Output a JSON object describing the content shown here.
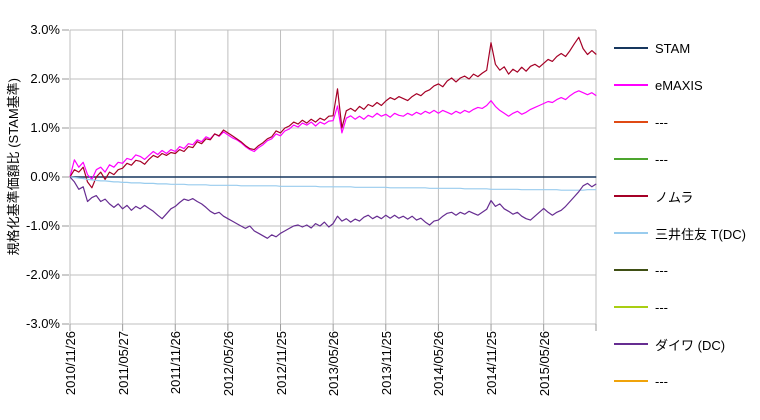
{
  "chart_data": {
    "type": "line",
    "title": "",
    "ylabel": "規格化基準価額比 (STAM基準)",
    "ylim": [
      -3,
      3
    ],
    "yticks": [
      3,
      2,
      1,
      0,
      -1,
      -2,
      -3
    ],
    "ytick_labels": [
      "3.0%",
      "2.0%",
      "1.0%",
      "0.0%",
      "-1.0%",
      "-2.0%",
      "-3.0%"
    ],
    "x_tick_labels": [
      "2010/11/26",
      "2011/05/27",
      "2011/11/26",
      "2012/05/26",
      "2012/11/25",
      "2013/05/26",
      "2013/11/25",
      "2014/05/26",
      "2014/11/25",
      "2015/05/26"
    ],
    "x_months_per_tick": 6,
    "x_total_months": 60,
    "grid": true,
    "legend_position": "right",
    "units": "percent",
    "series": [
      {
        "name": "STAM",
        "color": "#17375E",
        "values": [
          0,
          0
        ]
      },
      {
        "name": "eMAXIS",
        "color": "#FF00FF",
        "values": [
          0.0,
          0.35,
          0.2,
          0.3,
          0.05,
          -0.05,
          0.15,
          0.2,
          0.1,
          0.25,
          0.2,
          0.3,
          0.28,
          0.38,
          0.35,
          0.45,
          0.42,
          0.36,
          0.44,
          0.52,
          0.46,
          0.54,
          0.48,
          0.56,
          0.52,
          0.62,
          0.58,
          0.68,
          0.66,
          0.76,
          0.72,
          0.82,
          0.78,
          0.88,
          0.83,
          0.92,
          0.86,
          0.8,
          0.76,
          0.7,
          0.62,
          0.56,
          0.52,
          0.6,
          0.66,
          0.74,
          0.78,
          0.88,
          0.84,
          0.94,
          0.98,
          1.06,
          1.02,
          1.1,
          1.06,
          1.12,
          1.04,
          1.12,
          1.08,
          1.14,
          1.15,
          1.45,
          0.9,
          1.2,
          1.25,
          1.18,
          1.24,
          1.18,
          1.26,
          1.22,
          1.3,
          1.24,
          1.28,
          1.22,
          1.3,
          1.26,
          1.24,
          1.3,
          1.26,
          1.32,
          1.28,
          1.34,
          1.3,
          1.36,
          1.3,
          1.36,
          1.32,
          1.28,
          1.34,
          1.3,
          1.36,
          1.32,
          1.38,
          1.42,
          1.4,
          1.46,
          1.56,
          1.44,
          1.36,
          1.3,
          1.24,
          1.3,
          1.34,
          1.28,
          1.32,
          1.38,
          1.42,
          1.46,
          1.5,
          1.54,
          1.52,
          1.58,
          1.62,
          1.58,
          1.66,
          1.72,
          1.76,
          1.72,
          1.68,
          1.72,
          1.66
        ]
      },
      {
        "name": "ノムラ",
        "color": "#A50026",
        "values": [
          0.0,
          0.15,
          0.1,
          0.2,
          -0.1,
          -0.22,
          0.0,
          0.1,
          -0.05,
          0.1,
          0.05,
          0.15,
          0.18,
          0.28,
          0.24,
          0.34,
          0.32,
          0.26,
          0.36,
          0.44,
          0.4,
          0.48,
          0.44,
          0.5,
          0.48,
          0.56,
          0.52,
          0.62,
          0.6,
          0.72,
          0.68,
          0.78,
          0.76,
          0.88,
          0.84,
          0.96,
          0.9,
          0.84,
          0.78,
          0.72,
          0.64,
          0.58,
          0.56,
          0.64,
          0.7,
          0.78,
          0.82,
          0.94,
          0.9,
          1.0,
          1.04,
          1.12,
          1.08,
          1.16,
          1.1,
          1.18,
          1.12,
          1.2,
          1.16,
          1.24,
          1.25,
          1.8,
          1.0,
          1.35,
          1.4,
          1.34,
          1.44,
          1.38,
          1.48,
          1.44,
          1.52,
          1.46,
          1.55,
          1.62,
          1.58,
          1.64,
          1.6,
          1.56,
          1.64,
          1.7,
          1.66,
          1.74,
          1.78,
          1.86,
          1.9,
          1.84,
          1.96,
          2.02,
          1.94,
          2.02,
          2.06,
          2.0,
          2.1,
          2.05,
          2.12,
          2.18,
          2.74,
          2.3,
          2.18,
          2.25,
          2.1,
          2.2,
          2.14,
          2.24,
          2.16,
          2.26,
          2.3,
          2.24,
          2.32,
          2.4,
          2.36,
          2.46,
          2.52,
          2.46,
          2.58,
          2.72,
          2.85,
          2.62,
          2.5,
          2.58,
          2.5
        ]
      },
      {
        "name": "三井住友 T(DC)",
        "color": "#99CCEE",
        "values": [
          0.0,
          -0.01,
          -0.02,
          -0.03,
          -0.05,
          -0.06,
          -0.07,
          -0.08,
          -0.08,
          -0.09,
          -0.1,
          -0.1,
          -0.11,
          -0.11,
          -0.12,
          -0.12,
          -0.12,
          -0.13,
          -0.13,
          -0.13,
          -0.14,
          -0.14,
          -0.14,
          -0.15,
          -0.15,
          -0.15,
          -0.15,
          -0.16,
          -0.16,
          -0.16,
          -0.16,
          -0.16,
          -0.17,
          -0.17,
          -0.17,
          -0.17,
          -0.17,
          -0.17,
          -0.17,
          -0.18,
          -0.18,
          -0.18,
          -0.18,
          -0.18,
          -0.18,
          -0.18,
          -0.18,
          -0.18,
          -0.19,
          -0.19,
          -0.19,
          -0.19,
          -0.19,
          -0.19,
          -0.19,
          -0.19,
          -0.19,
          -0.2,
          -0.2,
          -0.2,
          -0.2,
          -0.2,
          -0.2,
          -0.2,
          -0.2,
          -0.21,
          -0.21,
          -0.21,
          -0.21,
          -0.21,
          -0.21,
          -0.21,
          -0.21,
          -0.22,
          -0.22,
          -0.22,
          -0.22,
          -0.22,
          -0.22,
          -0.22,
          -0.22,
          -0.22,
          -0.23,
          -0.23,
          -0.23,
          -0.23,
          -0.23,
          -0.23,
          -0.23,
          -0.23,
          -0.24,
          -0.24,
          -0.24,
          -0.24,
          -0.24,
          -0.24,
          -0.25,
          -0.25,
          -0.25,
          -0.25,
          -0.25,
          -0.25,
          -0.25,
          -0.26,
          -0.26,
          -0.26,
          -0.26,
          -0.26,
          -0.26,
          -0.26,
          -0.26,
          -0.26,
          -0.27,
          -0.27,
          -0.27,
          -0.27,
          -0.27,
          -0.27,
          -0.26,
          -0.26,
          -0.26
        ]
      },
      {
        "name": "ダイワ (DC)",
        "color": "#662D91",
        "values": [
          0.0,
          -0.1,
          -0.25,
          -0.2,
          -0.5,
          -0.42,
          -0.38,
          -0.5,
          -0.45,
          -0.55,
          -0.62,
          -0.55,
          -0.65,
          -0.58,
          -0.68,
          -0.6,
          -0.65,
          -0.58,
          -0.64,
          -0.7,
          -0.78,
          -0.85,
          -0.75,
          -0.65,
          -0.6,
          -0.52,
          -0.45,
          -0.48,
          -0.44,
          -0.5,
          -0.55,
          -0.62,
          -0.7,
          -0.75,
          -0.72,
          -0.8,
          -0.85,
          -0.9,
          -0.95,
          -1.0,
          -1.05,
          -1.0,
          -1.1,
          -1.15,
          -1.2,
          -1.25,
          -1.18,
          -1.22,
          -1.15,
          -1.1,
          -1.05,
          -1.0,
          -0.98,
          -1.02,
          -0.98,
          -1.04,
          -0.95,
          -1.0,
          -0.92,
          -1.02,
          -0.95,
          -0.8,
          -0.9,
          -0.85,
          -0.92,
          -0.86,
          -0.9,
          -0.82,
          -0.78,
          -0.85,
          -0.8,
          -0.85,
          -0.78,
          -0.84,
          -0.78,
          -0.84,
          -0.8,
          -0.86,
          -0.8,
          -0.88,
          -0.84,
          -0.92,
          -0.98,
          -0.9,
          -0.88,
          -0.8,
          -0.74,
          -0.72,
          -0.78,
          -0.72,
          -0.76,
          -0.7,
          -0.74,
          -0.78,
          -0.72,
          -0.66,
          -0.48,
          -0.6,
          -0.55,
          -0.65,
          -0.7,
          -0.76,
          -0.72,
          -0.8,
          -0.85,
          -0.88,
          -0.8,
          -0.72,
          -0.64,
          -0.72,
          -0.78,
          -0.72,
          -0.68,
          -0.6,
          -0.5,
          -0.4,
          -0.3,
          -0.18,
          -0.13,
          -0.2,
          -0.14
        ]
      }
    ],
    "legend": [
      {
        "label": "STAM",
        "color": "#17375E"
      },
      {
        "label": "eMAXIS",
        "color": "#FF00FF"
      },
      {
        "label": "---",
        "color": "#E04A14"
      },
      {
        "label": "---",
        "color": "#4CA52E"
      },
      {
        "label": "ノムラ",
        "color": "#A50026"
      },
      {
        "label": "三井住友 T(DC)",
        "color": "#99CCEE"
      },
      {
        "label": "---",
        "color": "#3F4F14"
      },
      {
        "label": "---",
        "color": "#A9CE12"
      },
      {
        "label": "ダイワ (DC)",
        "color": "#662D91"
      },
      {
        "label": "---",
        "color": "#F0A30A"
      }
    ]
  }
}
